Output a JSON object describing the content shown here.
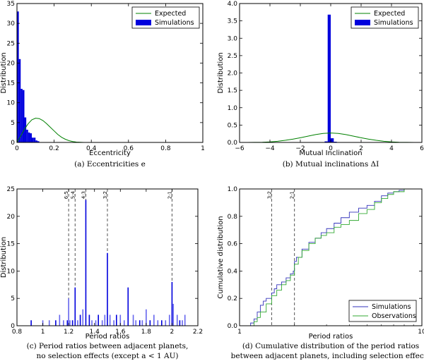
{
  "chart_data": [
    {
      "type": "bar",
      "panel": "a",
      "xlabel": "Eccentricity",
      "ylabel": "Distribution",
      "xlim": [
        0,
        1
      ],
      "ylim": [
        0,
        35
      ],
      "xticks": [
        0,
        0.2,
        0.4,
        0.6,
        0.8,
        1
      ],
      "xtick_labels": [
        "0",
        "0.2",
        "0.4",
        "0.6",
        "0.8",
        "1"
      ],
      "yticks": [
        0,
        5,
        10,
        15,
        20,
        25,
        30,
        35
      ],
      "ytick_labels": [
        "0",
        "5",
        "10",
        "15",
        "20",
        "25",
        "30",
        "35"
      ],
      "legend": [
        "Expected",
        "Simulations"
      ],
      "legend_position": "top-right",
      "caption": "(a) Eccentricities e",
      "series": [
        {
          "name": "Simulations",
          "bin_width": 0.01,
          "x": [
            0.005,
            0.015,
            0.025,
            0.035,
            0.045,
            0.055,
            0.065,
            0.075,
            0.085,
            0.095,
            0.105,
            0.115
          ],
          "values": [
            33,
            21,
            13.5,
            13.2,
            6.3,
            3.2,
            2.5,
            2.3,
            1.2,
            1.2,
            0.5,
            0.3
          ]
        },
        {
          "name": "Expected",
          "x": [
            0.0,
            0.02,
            0.04,
            0.06,
            0.08,
            0.1,
            0.12,
            0.14,
            0.16,
            0.18,
            0.2,
            0.22,
            0.24,
            0.26,
            0.28,
            0.3,
            0.32,
            0.34,
            0.36
          ],
          "values": [
            0.0,
            1.6,
            3.3,
            4.7,
            5.7,
            6.1,
            6.0,
            5.5,
            4.7,
            3.8,
            2.9,
            2.0,
            1.3,
            0.8,
            0.45,
            0.22,
            0.1,
            0.04,
            0.0
          ]
        }
      ]
    },
    {
      "type": "bar",
      "panel": "b",
      "xlabel": "Mutual Inclination",
      "ylabel": "Distribution",
      "xlim": [
        -6,
        6
      ],
      "ylim": [
        0,
        4
      ],
      "xticks": [
        -6,
        -4,
        -2,
        0,
        2,
        4,
        6
      ],
      "xtick_labels": [
        "−6",
        "−4",
        "−2",
        "0",
        "2",
        "4",
        "6"
      ],
      "yticks": [
        0,
        0.5,
        1,
        1.5,
        2,
        2.5,
        3,
        3.5,
        4
      ],
      "ytick_labels": [
        "0.0",
        "0.5",
        "1.0",
        "1.5",
        "2.0",
        "2.5",
        "3.0",
        "3.5",
        "4.0"
      ],
      "legend": [
        "Expected",
        "Simulations"
      ],
      "legend_position": "top-right",
      "caption": "(b) Mutual inclinations ΔI",
      "series": [
        {
          "name": "Simulations",
          "bin_width": 0.2,
          "x": [
            -0.3,
            -0.1,
            0.1,
            0.3
          ],
          "values": [
            0.03,
            3.68,
            0.12,
            0.02
          ]
        },
        {
          "name": "Expected",
          "x": [
            -5.5,
            -5,
            -4.5,
            -4,
            -3.5,
            -3,
            -2.5,
            -2,
            -1.5,
            -1,
            -0.5,
            0,
            0.5,
            1,
            1.5,
            2,
            2.5,
            3,
            3.5,
            4,
            4.5,
            5,
            5.5
          ],
          "values": [
            0.0,
            0.002,
            0.006,
            0.015,
            0.033,
            0.06,
            0.095,
            0.135,
            0.18,
            0.225,
            0.26,
            0.272,
            0.26,
            0.225,
            0.18,
            0.135,
            0.095,
            0.06,
            0.033,
            0.015,
            0.006,
            0.002,
            0.0
          ]
        }
      ]
    },
    {
      "type": "bar",
      "panel": "c",
      "xlabel": "Period ratios",
      "ylabel": "Distribution",
      "xlim": [
        0.8,
        2.2
      ],
      "ylim": [
        0,
        25
      ],
      "xticks": [
        0.8,
        1,
        1.2,
        1.4,
        1.6,
        1.8,
        2,
        2.2
      ],
      "xtick_labels": [
        "0.8",
        "1",
        "1.2",
        "1.4",
        "1.6",
        "1.8",
        "2",
        "2.2"
      ],
      "yticks": [
        0,
        5,
        10,
        15,
        20,
        25
      ],
      "ytick_labels": [
        "0",
        "5",
        "10",
        "15",
        "20",
        "25"
      ],
      "resonances": [
        {
          "label": "6:5",
          "x": 1.2
        },
        {
          "label": "5:4",
          "x": 1.25
        },
        {
          "label": "4:3",
          "x": 1.333
        },
        {
          "label": "3:2",
          "x": 1.5
        },
        {
          "label": "2:1",
          "x": 2.0
        }
      ],
      "caption_lines": [
        "(c) Period ratios between adjacent planets,",
        "no selection effects (except a < 1 AU)"
      ],
      "series": [
        {
          "name": "Simulations",
          "x": [
            0.91,
            1.0,
            1.05,
            1.1,
            1.13,
            1.16,
            1.19,
            1.2,
            1.21,
            1.23,
            1.25,
            1.27,
            1.29,
            1.31,
            1.333,
            1.36,
            1.38,
            1.41,
            1.43,
            1.46,
            1.48,
            1.5,
            1.52,
            1.55,
            1.57,
            1.6,
            1.63,
            1.66,
            1.7,
            1.72,
            1.75,
            1.77,
            1.8,
            1.83,
            1.86,
            1.89,
            1.92,
            1.95,
            1.98,
            2.0,
            2.01,
            2.04,
            2.06,
            2.08,
            2.1
          ],
          "values": [
            1,
            1,
            1,
            1,
            2,
            1,
            1,
            5,
            1,
            1,
            7,
            1,
            2,
            3,
            23,
            2,
            1,
            1,
            2,
            1,
            2,
            13.3,
            2,
            1,
            2,
            2,
            1,
            7,
            2,
            1,
            1,
            1,
            3,
            1,
            2,
            1,
            1,
            1,
            2,
            8,
            4,
            2,
            1,
            1,
            2
          ]
        }
      ]
    },
    {
      "type": "line",
      "panel": "d",
      "xlabel": "Period ratios",
      "ylabel": "Cumulative distribution",
      "xscale": "log",
      "xlim": [
        1,
        10
      ],
      "ylim": [
        0,
        1
      ],
      "xticks": [
        1,
        10
      ],
      "xtick_labels": [
        "1",
        "10"
      ],
      "yticks": [
        0,
        0.2,
        0.4,
        0.6,
        0.8,
        1
      ],
      "ytick_labels": [
        "0.0",
        "0.2",
        "0.4",
        "0.6",
        "0.8",
        "1.0"
      ],
      "resonances": [
        {
          "label": "3:2",
          "x": 1.5
        },
        {
          "label": "2:1",
          "x": 2.0
        }
      ],
      "legend": [
        "Simulations",
        "Observations"
      ],
      "legend_position": "lower-right",
      "caption_lines": [
        "(d) Cumulative distribution of the period ratios",
        "between adjacent planets, including selection effects"
      ],
      "series": [
        {
          "name": "Simulations",
          "x": [
            1.1,
            1.15,
            1.2,
            1.25,
            1.3,
            1.35,
            1.4,
            1.45,
            1.5,
            1.55,
            1.6,
            1.7,
            1.8,
            1.9,
            1.97,
            2.0,
            2.05,
            2.2,
            2.4,
            2.6,
            2.8,
            3.0,
            3.3,
            3.6,
            4.0,
            4.5,
            5.0,
            5.5,
            6.0,
            6.5,
            7.0,
            7.5,
            8.0
          ],
          "values": [
            0.0,
            0.02,
            0.05,
            0.1,
            0.15,
            0.18,
            0.2,
            0.2,
            0.24,
            0.27,
            0.3,
            0.32,
            0.35,
            0.38,
            0.4,
            0.47,
            0.5,
            0.56,
            0.61,
            0.64,
            0.68,
            0.71,
            0.75,
            0.79,
            0.83,
            0.86,
            0.88,
            0.91,
            0.95,
            0.97,
            0.98,
            0.99,
            1.0
          ]
        },
        {
          "name": "Observations",
          "x": [
            1.15,
            1.2,
            1.25,
            1.3,
            1.4,
            1.5,
            1.6,
            1.7,
            1.8,
            1.9,
            2.0,
            2.1,
            2.2,
            2.4,
            2.6,
            2.8,
            3.0,
            3.3,
            3.6,
            4.0,
            4.5,
            5.0,
            5.5,
            6.0,
            6.5,
            7.0,
            8.0
          ],
          "values": [
            0.0,
            0.03,
            0.06,
            0.1,
            0.16,
            0.22,
            0.26,
            0.3,
            0.33,
            0.37,
            0.45,
            0.5,
            0.55,
            0.6,
            0.64,
            0.66,
            0.68,
            0.72,
            0.74,
            0.77,
            0.82,
            0.85,
            0.9,
            0.93,
            0.96,
            0.98,
            1.0
          ]
        }
      ]
    }
  ],
  "colors": {
    "simulations_bar": "#0000dd",
    "expected_line": "#008000",
    "simulations_line": "#3333bb",
    "observations_line": "#33aa33",
    "axis": "#000000"
  }
}
